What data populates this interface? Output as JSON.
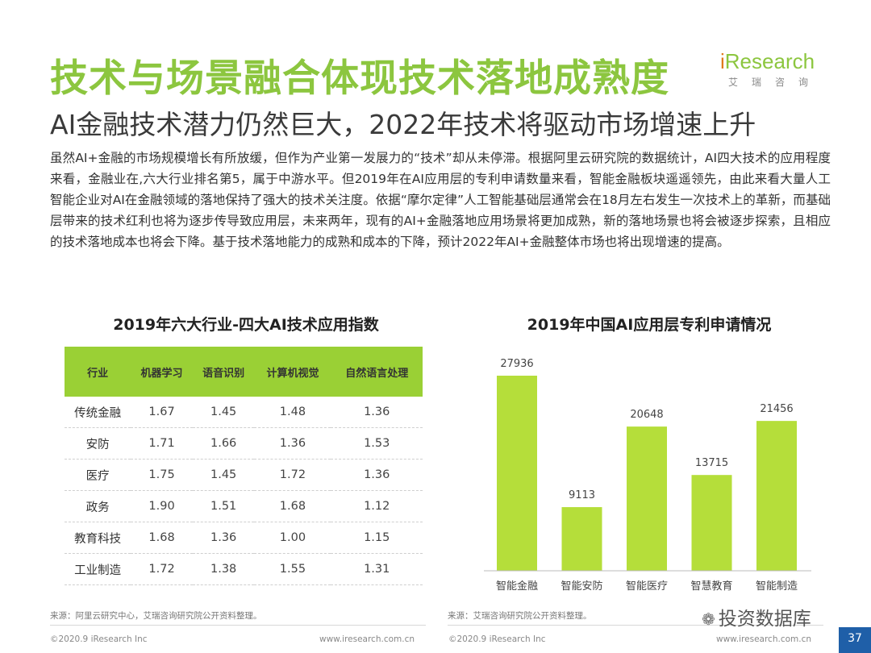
{
  "title": "技术与场景融合体现技术落地成熟度",
  "subtitle": "AI金融技术潜力仍然巨大，2022年技术将驱动市场增速上升",
  "logo": {
    "main_i": "i",
    "main_rest": "Research",
    "sub": "艾瑞咨询"
  },
  "paragraph": "虽然AI+金融的市场规模增长有所放缓，但作为产业第一发展力的“技术”却从未停滞。根据阿里云研究院的数据统计，AI四大技术的应用程度来看，金融业在,六大行业排名第5，属于中游水平。但2019年在AI应用层的专利申请数量来看，智能金融板块遥遥领先，由此来看大量人工智能企业对AI在金融领域的落地保持了强大的技术关注度。依据“摩尔定律”人工智能基础层通常会在18月左右发生一次技术上的革新，而基础层带来的技术红利也将为逐步传导致应用层，未来两年，现有的AI+金融落地应用场景将更加成熟，新的落地场景也将会被逐步探索，且相应的技术落地成本也将会下降。基于技术落地能力的成熟和成本的下降，预计2022年AI+金融整体市场也将出现增速的提高。",
  "table": {
    "title": "2019年六大行业-四大AI技术应用指数",
    "headers": [
      "行业",
      "机器学习",
      "语音识别",
      "计算机视觉",
      "自然语言处理"
    ],
    "rows": [
      [
        "传统金融",
        "1.67",
        "1.45",
        "1.48",
        "1.36"
      ],
      [
        "安防",
        "1.71",
        "1.66",
        "1.36",
        "1.53"
      ],
      [
        "医疗",
        "1.75",
        "1.45",
        "1.72",
        "1.36"
      ],
      [
        "政务",
        "1.90",
        "1.51",
        "1.68",
        "1.12"
      ],
      [
        "教育科技",
        "1.68",
        "1.36",
        "1.00",
        "1.15"
      ],
      [
        "工业制造",
        "1.72",
        "1.38",
        "1.55",
        "1.31"
      ]
    ]
  },
  "chart_data": {
    "type": "bar",
    "title": "2019年中国AI应用层专利申请情况",
    "categories": [
      "智能金融",
      "智能安防",
      "智能医疗",
      "智慧教育",
      "智能制造"
    ],
    "values": [
      27936,
      9113,
      20648,
      13715,
      21456
    ],
    "xlabel": "",
    "ylabel": "",
    "ylim": [
      0,
      27936
    ],
    "color": "#b5de3a",
    "grid": false
  },
  "sources": {
    "left": "来源：阿里云研究中心，艾瑞咨询研究院公开资料整理。",
    "right": "来源：艾瑞咨询研究院公开资料整理。"
  },
  "footer": {
    "copyright_left": "©2020.9 iResearch Inc",
    "url_left": "www.iresearch.com.cn",
    "copyright_right": "©2020.9 iResearch Inc",
    "url_right": "www.iresearch.com.cn"
  },
  "watermark": "投资数据库",
  "page_number": "37"
}
